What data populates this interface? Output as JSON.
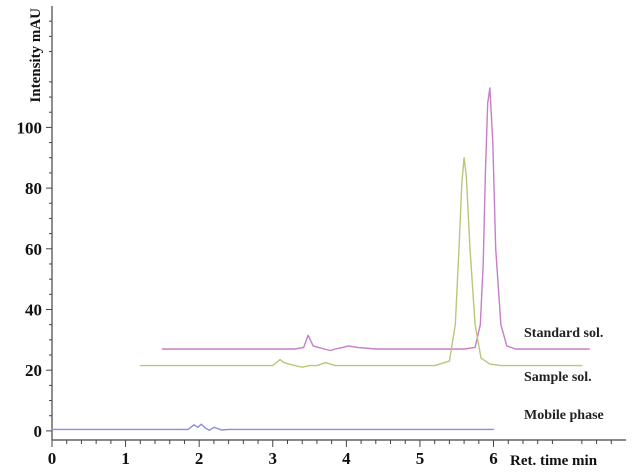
{
  "chart_data": {
    "type": "line",
    "title": "",
    "xlabel": "Ret. time min",
    "ylabel": "Intensity mAU",
    "xlim": [
      0,
      7.8
    ],
    "ylim": [
      -3,
      140
    ],
    "x_ticks": [
      0,
      1,
      2,
      3,
      4,
      5,
      6
    ],
    "y_ticks": [
      0,
      20,
      40,
      60,
      80,
      100
    ],
    "grid": false,
    "legend": "inline labels to the right of each trace",
    "series": [
      {
        "name": "Standard sol.",
        "color": "#c77dc7",
        "x": [
          1.5,
          3.3,
          3.42,
          3.48,
          3.55,
          3.62,
          3.7,
          3.78,
          3.85,
          3.95,
          4.03,
          4.15,
          4.4,
          5.0,
          5.6,
          5.75,
          5.82,
          5.86,
          5.89,
          5.92,
          5.95,
          5.99,
          6.03,
          6.1,
          6.18,
          6.3,
          6.6,
          7.3
        ],
        "y": [
          27,
          27,
          27.5,
          31.5,
          28,
          27.5,
          27,
          26.5,
          27,
          27.5,
          28,
          27.5,
          27,
          27,
          27,
          27.5,
          35,
          55,
          85,
          108,
          113,
          95,
          60,
          35,
          28,
          27,
          27,
          27
        ]
      },
      {
        "name": "Sample sol.",
        "color": "#b9c77a",
        "x": [
          1.2,
          3.0,
          3.1,
          3.15,
          3.22,
          3.3,
          3.4,
          3.5,
          3.6,
          3.72,
          3.85,
          4.0,
          4.6,
          5.2,
          5.4,
          5.48,
          5.53,
          5.57,
          5.6,
          5.63,
          5.68,
          5.75,
          5.83,
          5.95,
          6.1,
          7.2
        ],
        "y": [
          21.5,
          21.5,
          23.5,
          22.5,
          22,
          21.5,
          21,
          21.5,
          21.5,
          22.5,
          21.5,
          21.5,
          21.5,
          21.5,
          23,
          35,
          60,
          82,
          90,
          84,
          60,
          35,
          24,
          22,
          21.5,
          21.5
        ]
      },
      {
        "name": "Mobile phase",
        "color": "#8b8be0",
        "x": [
          0,
          1.85,
          1.93,
          1.98,
          2.03,
          2.08,
          2.14,
          2.2,
          2.25,
          2.3,
          2.4,
          2.6,
          6.0
        ],
        "y": [
          0.5,
          0.5,
          2,
          1.2,
          2.2,
          1,
          0.2,
          1.2,
          0.8,
          0.3,
          0.5,
          0.5,
          0.5
        ]
      }
    ]
  }
}
